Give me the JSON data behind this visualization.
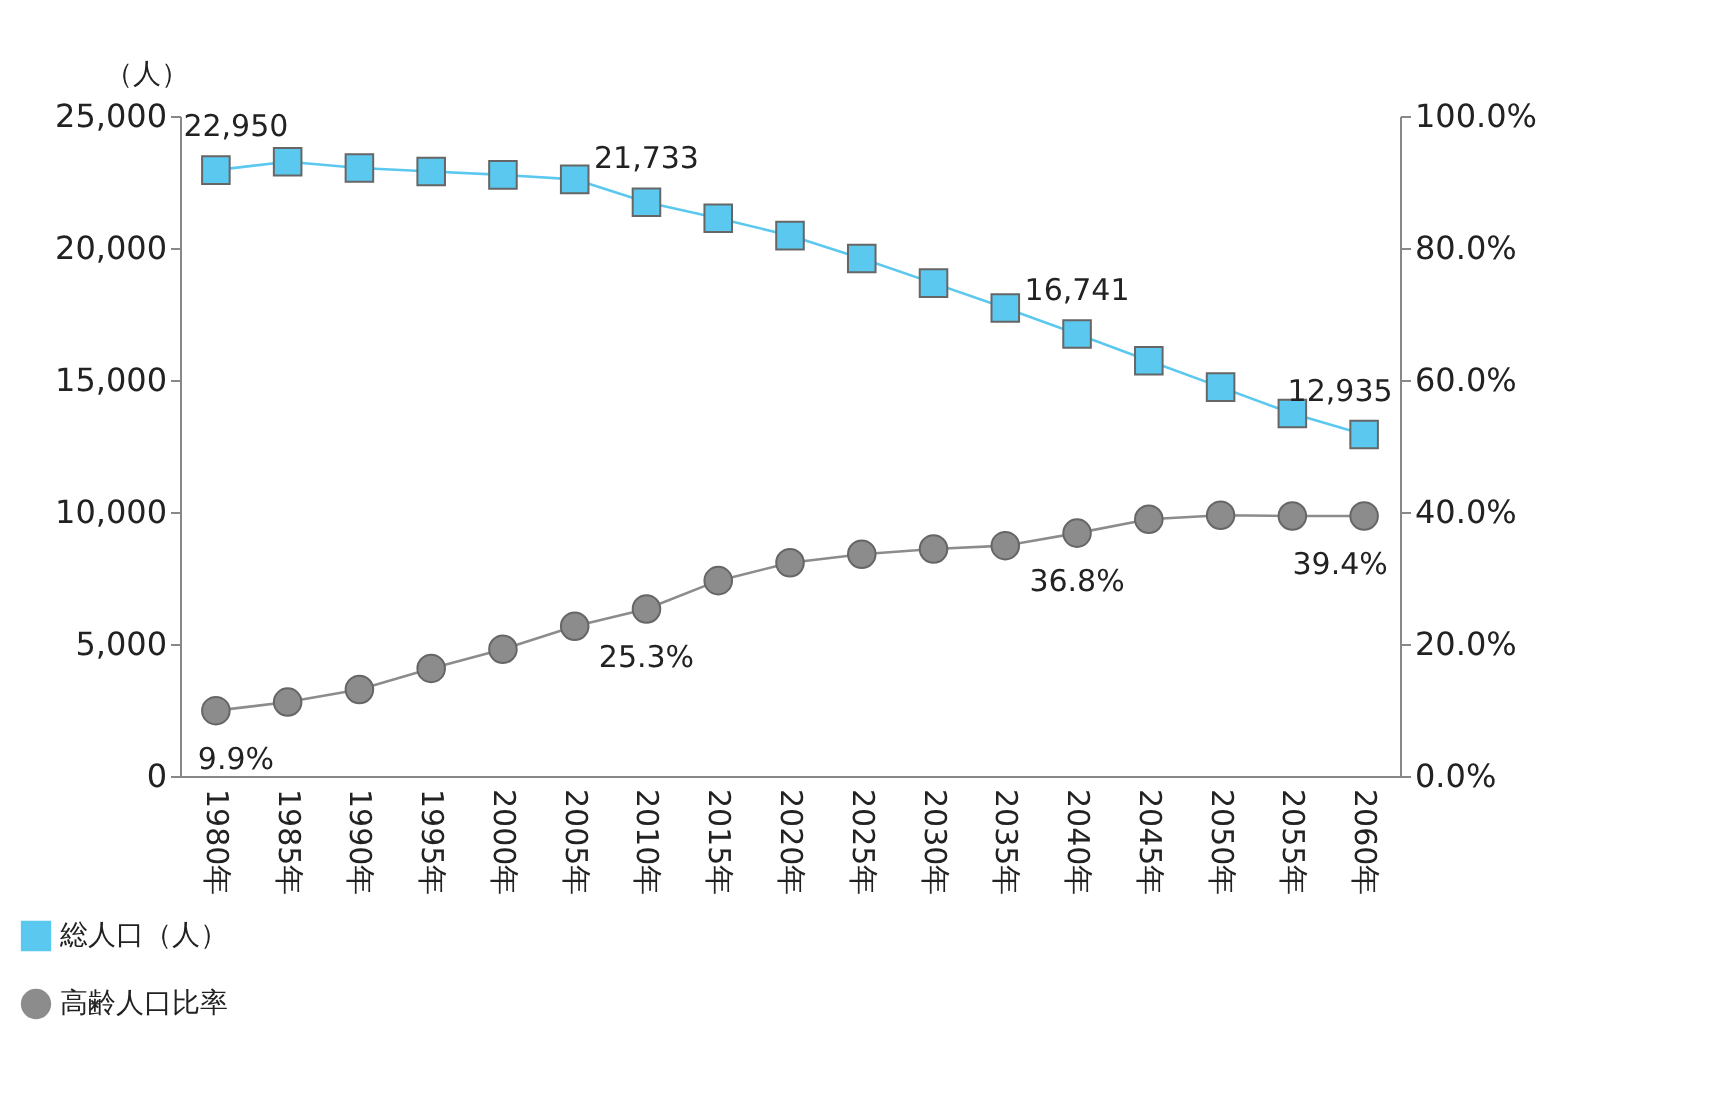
{
  "chart_data": {
    "type": "line",
    "ylabel": "（人）",
    "categories": [
      "1980年",
      "1985年",
      "1990年",
      "1995年",
      "2000年",
      "2005年",
      "2010年",
      "2015年",
      "2020年",
      "2025年",
      "2030年",
      "2035年",
      "2040年",
      "2045年",
      "2050年",
      "2055年",
      "2060年"
    ],
    "series": [
      {
        "name": "総人口（人）",
        "color": "#5bc8ef",
        "marker": "square",
        "values": [
          22950,
          23270,
          23030,
          22900,
          22770,
          22600,
          21733,
          21130,
          20470,
          19600,
          18670,
          17730,
          16741,
          15730,
          14730,
          13730,
          12935
        ],
        "value_labels": [
          "22,950",
          null,
          null,
          null,
          null,
          null,
          "21,733",
          null,
          null,
          null,
          null,
          null,
          "16,741",
          null,
          null,
          null,
          "12,935"
        ]
      },
      {
        "name": "高齢人口比率",
        "color": "#8c8c8c",
        "marker": "circle",
        "axis": "y2",
        "values": [
          9.9,
          11.2,
          13.1,
          16.3,
          19.2,
          22.7,
          25.3,
          29.6,
          32.3,
          33.6,
          34.4,
          34.9,
          36.8,
          38.9,
          39.5,
          39.4,
          39.4
        ],
        "value_labels": [
          "9.9%",
          null,
          null,
          null,
          null,
          null,
          "25.3%",
          null,
          null,
          null,
          null,
          null,
          "36.8%",
          null,
          null,
          null,
          "39.4%"
        ]
      }
    ],
    "ylim": [
      0,
      25000
    ],
    "yticks": [
      {
        "value": 0,
        "label": "0"
      },
      {
        "value": 5000,
        "label": "5,000"
      },
      {
        "value": 10000,
        "label": "10,000"
      },
      {
        "value": 15000,
        "label": "15,000"
      },
      {
        "value": 20000,
        "label": "20,000"
      },
      {
        "value": 25000,
        "label": "25,000"
      }
    ],
    "y2lim": [
      0,
      100
    ],
    "y2ticks": [
      {
        "value": 0,
        "label": "0.0%"
      },
      {
        "value": 20,
        "label": "20.0%"
      },
      {
        "value": 40,
        "label": "40.0%"
      },
      {
        "value": 60,
        "label": "60.0%"
      },
      {
        "value": 80,
        "label": "80.0%"
      },
      {
        "value": 100,
        "label": "100.0%"
      }
    ],
    "legend": "bottom left",
    "grid": false
  }
}
